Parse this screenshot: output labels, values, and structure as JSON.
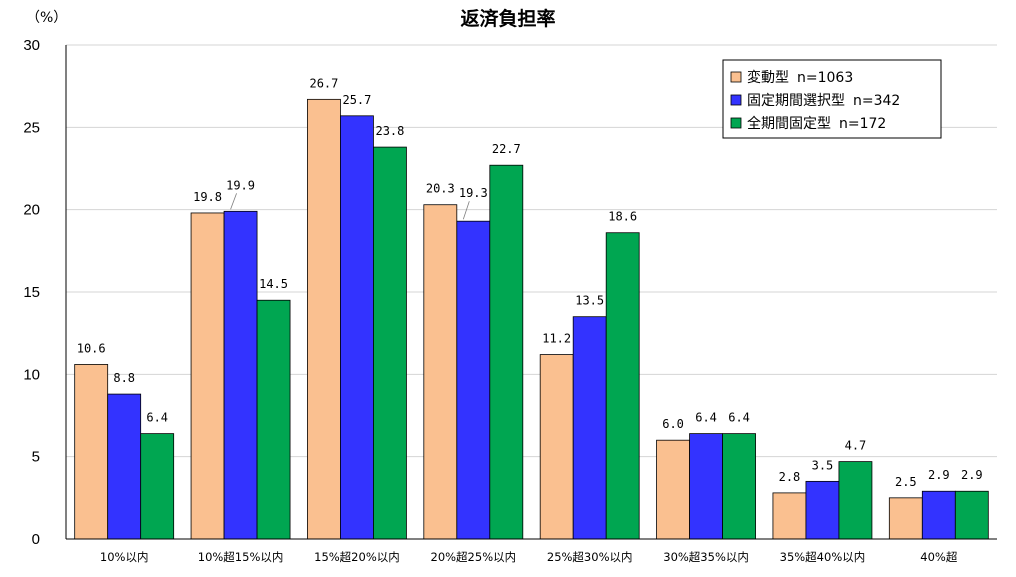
{
  "chart_data": {
    "type": "bar",
    "title": "返済負担率",
    "ylabel": "（%）",
    "xlabel": "",
    "ylim": [
      0,
      30
    ],
    "yticks": [
      "0",
      "5",
      "10",
      "15",
      "20",
      "25",
      "30"
    ],
    "grid": true,
    "legend_position": "top-right",
    "categories": [
      "10%以内",
      "10%超15%以内",
      "15%超20%以内",
      "20%超25%以内",
      "25%超30%以内",
      "30%超35%以内",
      "35%超40%以内",
      "40%超"
    ],
    "series": [
      {
        "name": "変動型",
        "n": "n=1063",
        "color": "#FAC090",
        "values": [
          10.6,
          19.8,
          26.7,
          20.3,
          11.2,
          6.0,
          2.8,
          2.5
        ],
        "labels": [
          "10.6",
          "19.8",
          "26.7",
          "20.3",
          "11.2",
          "6.0",
          "2.8",
          "2.5"
        ]
      },
      {
        "name": "固定期間選択型",
        "n": "n=342",
        "color": "#3333FF",
        "values": [
          8.8,
          19.9,
          25.7,
          19.3,
          13.5,
          6.4,
          3.5,
          2.9
        ],
        "labels": [
          "8.8",
          "19.9",
          "25.7",
          "19.3",
          "13.5",
          "6.4",
          "3.5",
          "2.9"
        ]
      },
      {
        "name": "全期間固定型",
        "n": "n=172",
        "color": "#00A651",
        "values": [
          6.4,
          14.5,
          23.8,
          22.7,
          18.6,
          6.4,
          4.7,
          2.9
        ],
        "labels": [
          "6.4",
          "14.5",
          "23.8",
          "22.7",
          "18.6",
          "6.4",
          "4.7",
          "2.9"
        ]
      }
    ]
  }
}
